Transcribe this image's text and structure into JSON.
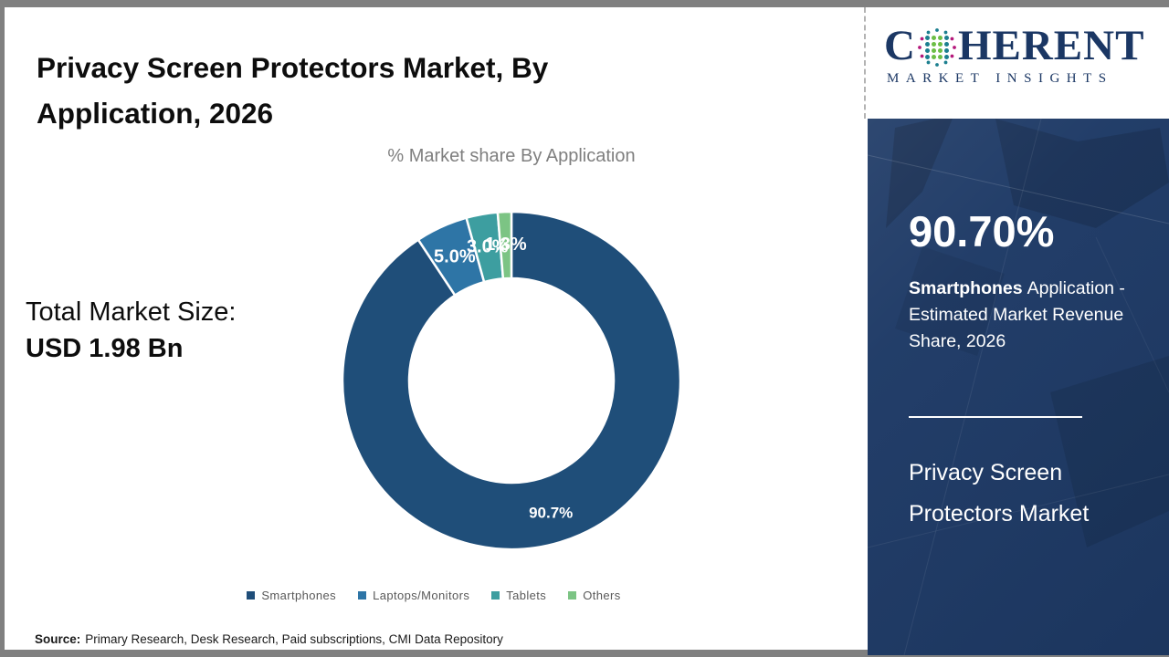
{
  "header": {
    "title": "Privacy Screen Protectors Market, By Application, 2026",
    "subtitle": "% Market share By Application"
  },
  "brand": {
    "prefix": "C",
    "suffix": "HERENT",
    "tagline": "MARKET INSIGHTS",
    "logo_color": "#1b3764"
  },
  "summary": {
    "label": "Total Market Size:",
    "value": "USD 1.98 Bn"
  },
  "chart_data": {
    "type": "pie",
    "donut": true,
    "title": "% Market share By Application",
    "categories": [
      "Smartphones",
      "Laptops/Monitors",
      "Tablets",
      "Others"
    ],
    "values": [
      90.7,
      5.0,
      3.0,
      1.3
    ],
    "labels": [
      "90.7%",
      "5.0%",
      "3.0%",
      "1.3%"
    ],
    "colors": [
      "#1F4E79",
      "#2E75A6",
      "#3D9EA0",
      "#7CC484"
    ],
    "start_angle_deg": 0,
    "direction": "clockwise",
    "legend_position": "bottom"
  },
  "panel": {
    "stat": "90.70%",
    "desc_bold": "Smartphones",
    "desc_rest": "Application - Estimated Market Revenue Share, 2026",
    "market": "Privacy Screen Protectors Market",
    "background_color": "#1e3a66"
  },
  "source": {
    "label": "Source:",
    "text": "Primary Research, Desk Research, Paid subscriptions, CMI Data Repository"
  }
}
